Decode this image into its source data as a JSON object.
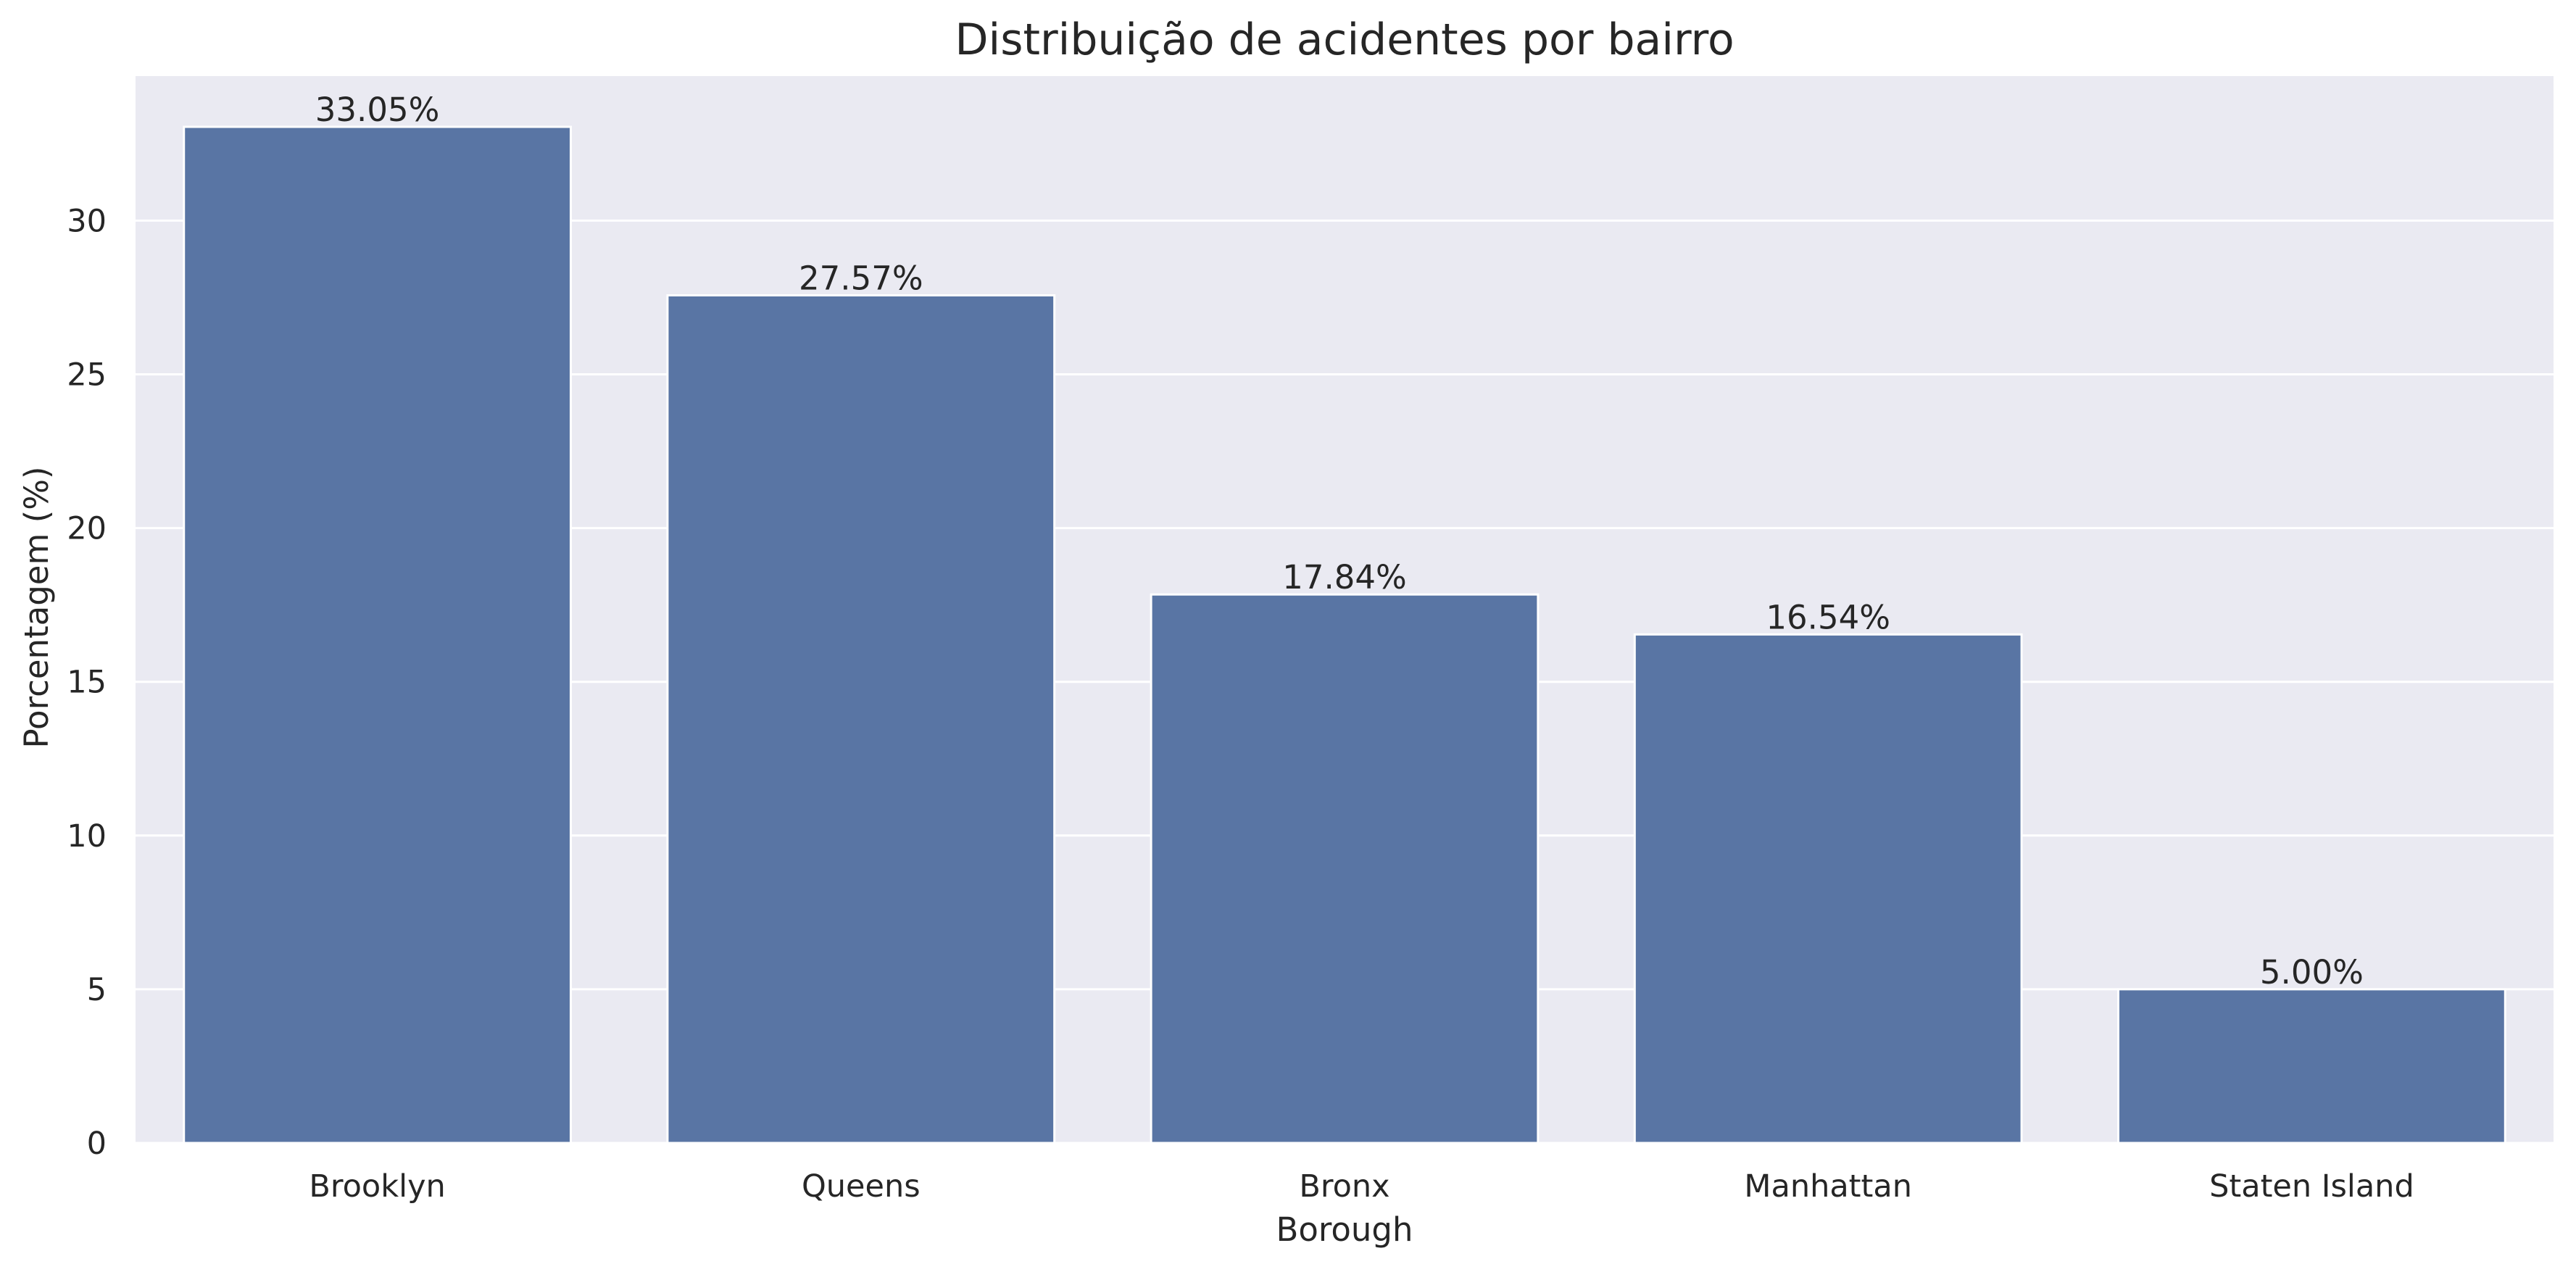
{
  "chart_data": {
    "type": "bar",
    "title": "Distribuição de acidentes por bairro",
    "xlabel": "Borough",
    "ylabel": "Porcentagem (%)",
    "categories": [
      "Brooklyn",
      "Queens",
      "Bronx",
      "Manhattan",
      "Staten Island"
    ],
    "values": [
      33.05,
      27.57,
      17.84,
      16.54,
      5.0
    ],
    "data_labels": [
      "33.05%",
      "27.57%",
      "17.84%",
      "16.54%",
      "5.00%"
    ],
    "yticks": [
      0,
      5,
      10,
      15,
      20,
      25,
      30
    ],
    "ytick_labels": [
      "0",
      "5",
      "10",
      "15",
      "20",
      "25",
      "30"
    ],
    "ylim": [
      0,
      34.7
    ],
    "grid": "horizontal",
    "colors": {
      "bar": "#5975a4",
      "plot_background": "#eaeaf2",
      "grid": "#ffffff",
      "text": "#262626"
    }
  }
}
